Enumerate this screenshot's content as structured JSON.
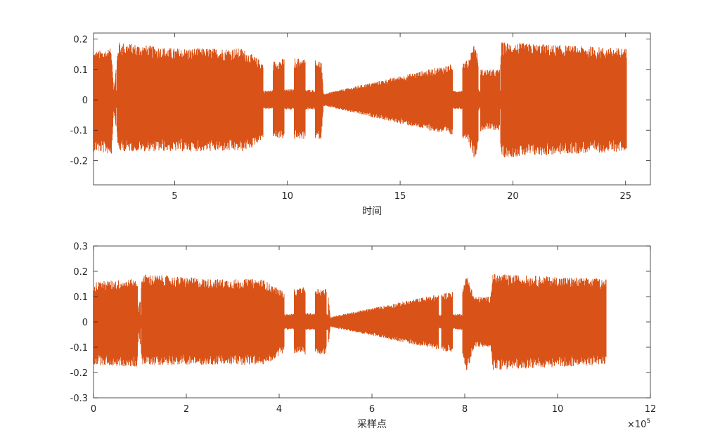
{
  "chart_data": [
    {
      "type": "line",
      "title": "",
      "xlabel": "时间",
      "ylabel": "",
      "xlim": [
        1.4,
        26.1
      ],
      "ylim": [
        -0.28,
        0.22
      ],
      "xticks": [
        5,
        10,
        15,
        20,
        25
      ],
      "xtick_labels": [
        "5",
        "10",
        "15",
        "20",
        "25"
      ],
      "yticks": [
        -0.2,
        -0.1,
        0,
        0.1,
        0.2
      ],
      "ytick_labels": [
        "-0.2",
        "-0.1",
        "0",
        "0.1",
        "0.2"
      ],
      "grid": false,
      "series_color": "#D95319",
      "data_range_x": [
        1.4,
        25.05
      ],
      "envelope": [
        {
          "x": 1.4,
          "upper": 0.16,
          "lower": -0.17
        },
        {
          "x": 2.2,
          "upper": 0.17,
          "lower": -0.18
        },
        {
          "x": 2.3,
          "upper": 0.03,
          "lower": -0.03
        },
        {
          "x": 2.5,
          "upper": 0.19,
          "lower": -0.17
        },
        {
          "x": 5.0,
          "upper": 0.17,
          "lower": -0.17
        },
        {
          "x": 8.0,
          "upper": 0.17,
          "lower": -0.17
        },
        {
          "x": 8.4,
          "upper": 0.15,
          "lower": -0.16
        },
        {
          "x": 9.0,
          "upper": 0.12,
          "lower": -0.12
        },
        {
          "x": 10.0,
          "upper": 0.14,
          "lower": -0.13
        },
        {
          "x": 11.5,
          "upper": 0.13,
          "lower": -0.13
        },
        {
          "x": 11.6,
          "upper": 0.02,
          "lower": -0.02
        },
        {
          "x": 18.0,
          "upper": 0.13,
          "lower": -0.13
        },
        {
          "x": 18.3,
          "upper": 0.19,
          "lower": -0.2
        },
        {
          "x": 18.6,
          "upper": 0.1,
          "lower": -0.1
        },
        {
          "x": 19.4,
          "upper": 0.1,
          "lower": -0.1
        },
        {
          "x": 19.5,
          "upper": 0.19,
          "lower": -0.19
        },
        {
          "x": 25.05,
          "upper": 0.17,
          "lower": -0.17
        }
      ]
    },
    {
      "type": "line",
      "title": "",
      "xlabel": "采样点",
      "ylabel": "",
      "xlim": [
        0,
        12
      ],
      "x_multiplier": "×10",
      "x_multiplier_exp": "5",
      "ylim": [
        -0.3,
        0.3
      ],
      "xticks": [
        0,
        2,
        4,
        6,
        8,
        10,
        12
      ],
      "xtick_labels": [
        "0",
        "2",
        "4",
        "6",
        "8",
        "10",
        "12"
      ],
      "yticks": [
        -0.3,
        -0.2,
        -0.1,
        0,
        0.1,
        0.2,
        0.3
      ],
      "ytick_labels": [
        "-0.3",
        "-0.2",
        "-0.1",
        "0",
        "0.1",
        "0.2",
        "0.3"
      ],
      "grid": false,
      "series_color": "#D95319",
      "data_range_x": [
        0,
        11.05
      ],
      "envelope": [
        {
          "x": 0.0,
          "upper": 0.16,
          "lower": -0.17
        },
        {
          "x": 0.95,
          "upper": 0.17,
          "lower": -0.18
        },
        {
          "x": 0.97,
          "upper": 0.03,
          "lower": -0.03
        },
        {
          "x": 1.05,
          "upper": 0.19,
          "lower": -0.17
        },
        {
          "x": 2.5,
          "upper": 0.17,
          "lower": -0.17
        },
        {
          "x": 3.65,
          "upper": 0.17,
          "lower": -0.17
        },
        {
          "x": 3.8,
          "upper": 0.15,
          "lower": -0.16
        },
        {
          "x": 4.1,
          "upper": 0.12,
          "lower": -0.12
        },
        {
          "x": 4.6,
          "upper": 0.14,
          "lower": -0.13
        },
        {
          "x": 5.05,
          "upper": 0.13,
          "lower": -0.13
        },
        {
          "x": 5.1,
          "upper": 0.02,
          "lower": -0.02
        },
        {
          "x": 7.95,
          "upper": 0.13,
          "lower": -0.13
        },
        {
          "x": 8.05,
          "upper": 0.19,
          "lower": -0.2
        },
        {
          "x": 8.2,
          "upper": 0.1,
          "lower": -0.1
        },
        {
          "x": 8.55,
          "upper": 0.1,
          "lower": -0.1
        },
        {
          "x": 8.6,
          "upper": 0.19,
          "lower": -0.19
        },
        {
          "x": 11.05,
          "upper": 0.17,
          "lower": -0.17
        }
      ]
    }
  ]
}
